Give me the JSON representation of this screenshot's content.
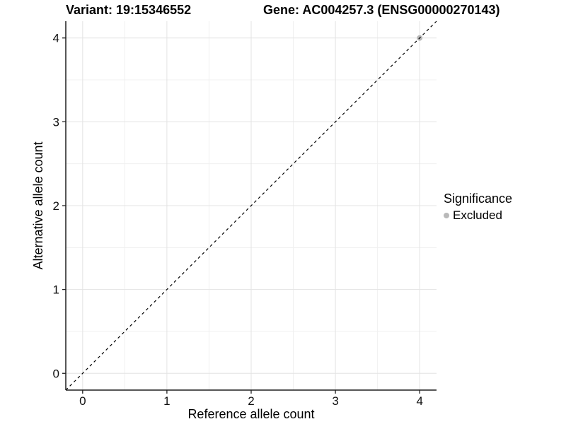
{
  "chart_data": {
    "type": "scatter",
    "titles": [
      {
        "text": "Variant: 19:15346552"
      },
      {
        "text": "Gene: AC004257.3 (ENSG00000270143)"
      }
    ],
    "xlabel": "Reference allele count",
    "ylabel": "Alternative allele count",
    "xlim": [
      -0.2,
      4.2
    ],
    "ylim": [
      -0.2,
      4.2
    ],
    "x_ticks": [
      0,
      1,
      2,
      3,
      4
    ],
    "y_ticks": [
      0,
      1,
      2,
      3,
      4
    ],
    "x_minor_gridlines": [
      0.5,
      1.5,
      2.5,
      3.5
    ],
    "y_minor_gridlines": [
      0.5,
      1.5,
      2.5,
      3.5
    ],
    "grid": "on",
    "legend_position": "right",
    "legend": {
      "title": "Significance",
      "items": [
        {
          "label": "Excluded",
          "color": "#b9b9b9"
        }
      ]
    },
    "series": [
      {
        "name": "Excluded",
        "color": "#b9b9b9",
        "points": [
          {
            "x": 4,
            "y": 4
          }
        ]
      }
    ],
    "reference_line": {
      "kind": "identity y = x",
      "from": {
        "x": -0.2,
        "y": -0.2
      },
      "to": {
        "x": 4.2,
        "y": 4.2
      },
      "style": "dashed",
      "color": "#000000"
    }
  },
  "colors": {
    "background": "#ffffff",
    "grid_major": "#e3e3e3",
    "grid_minor": "#f0f0f0",
    "axis_line": "#1f1f1f",
    "tick_text": "#111111",
    "point": "#b9b9b9",
    "reference_line": "#000000"
  }
}
